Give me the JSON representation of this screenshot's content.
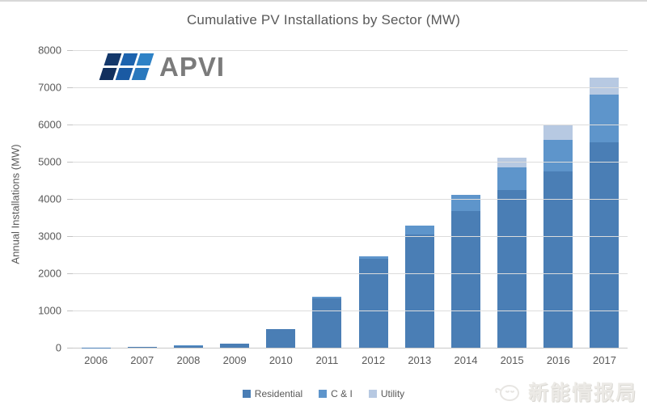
{
  "title": "Cumulative PV Installations by Sector (MW)",
  "logo": {
    "text": "APVI",
    "panel_colors": [
      "#14386b",
      "#1d63ae",
      "#2e82c6",
      "#112f5e",
      "#1a5aa3",
      "#2a78bd"
    ]
  },
  "watermark": {
    "text": "新能情报局",
    "icon": "doodle-animal-icon"
  },
  "chart_data": {
    "type": "bar",
    "stacked": true,
    "title": "Cumulative PV Installations by Sector (MW)",
    "ylabel": "Annual Installations (MW)",
    "xlabel": "",
    "ylim": [
      0,
      8000
    ],
    "ytick_step": 1000,
    "grid": true,
    "legend_position": "bottom",
    "categories": [
      "2006",
      "2007",
      "2008",
      "2009",
      "2010",
      "2011",
      "2012",
      "2013",
      "2014",
      "2015",
      "2016",
      "2017"
    ],
    "series": [
      {
        "name": "Residential",
        "color": "#4a7eb5",
        "values": [
          8,
          12,
          50,
          115,
          490,
          1320,
          2390,
          3050,
          3670,
          4230,
          4730,
          5520
        ]
      },
      {
        "name": "C & I",
        "color": "#5e95cb",
        "values": [
          0,
          0,
          5,
          5,
          10,
          50,
          60,
          230,
          430,
          620,
          860,
          1290
        ]
      },
      {
        "name": "Utility",
        "color": "#b7c9e2",
        "values": [
          0,
          0,
          0,
          0,
          0,
          5,
          5,
          10,
          15,
          270,
          390,
          460
        ]
      }
    ],
    "totals": [
      8,
      12,
      55,
      120,
      500,
      1375,
      2455,
      3290,
      4115,
      5120,
      5980,
      7270
    ]
  },
  "colors": {
    "gridline": "#dcdcdc",
    "axis_line": "#c9c9c9",
    "text": "#595959",
    "background": "#ffffff"
  }
}
